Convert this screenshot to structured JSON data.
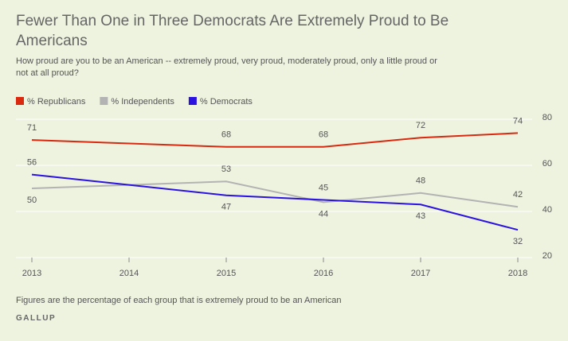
{
  "chart_data": {
    "type": "line",
    "title": "Fewer Than One in Three Democrats Are Extremely Proud to Be Americans",
    "subtitle": "How proud are you to be an American -- extremely proud, very proud, moderately proud, only a little proud or not at all proud?",
    "x": [
      2013,
      2015,
      2016,
      2017,
      2018
    ],
    "xlim": [
      2013,
      2018
    ],
    "xticks": [
      2013,
      2014,
      2015,
      2016,
      2017,
      2018
    ],
    "ylim": [
      20,
      80
    ],
    "yticks": [
      20,
      40,
      60,
      80
    ],
    "grid": true,
    "series": [
      {
        "name": "% Republicans",
        "color": "#d9290f",
        "values": [
          71,
          68,
          68,
          72,
          74
        ]
      },
      {
        "name": "% Independents",
        "color": "#b3b3b3",
        "values": [
          50,
          53,
          44,
          48,
          42
        ]
      },
      {
        "name": "% Democrats",
        "color": "#2b12e0",
        "values": [
          56,
          47,
          45,
          43,
          32
        ]
      }
    ],
    "note": "Figures are the percentage of each group that is extremely proud to be an American",
    "source": "GALLUP"
  }
}
